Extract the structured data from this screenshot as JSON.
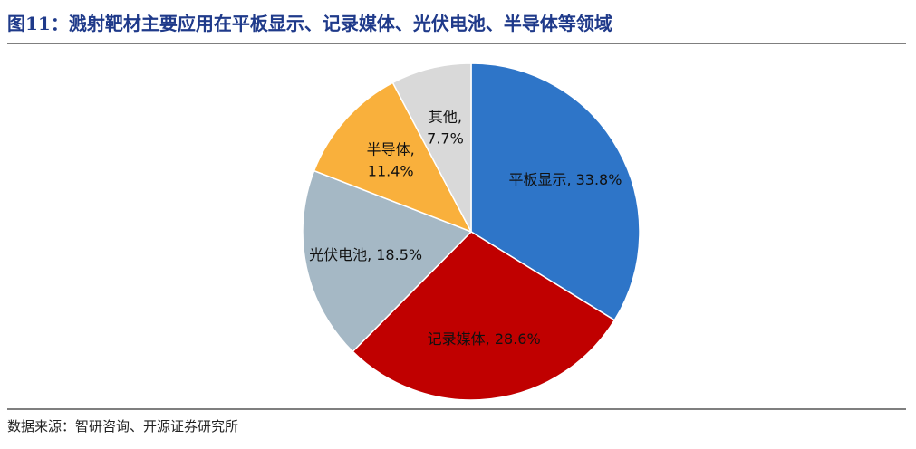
{
  "chart_data": {
    "type": "pie",
    "title": "图11：溅射靶材主要应用在平板显示、记录媒体、光伏电池、半导体等领域",
    "values": [
      33.8,
      28.6,
      18.5,
      11.4,
      7.7
    ],
    "value_labels": [
      "平板显示, 33.8%",
      "记录媒体, 28.6%",
      "光伏电池, 18.5%",
      "半导体,\n11.4%",
      "其他,\n7.7%"
    ],
    "colors": [
      "#2e75c8",
      "#c00000",
      "#a5b8c5",
      "#f9b03c",
      "#d9d9d9"
    ],
    "source": "数据来源：智研咨询、开源证券研究所"
  }
}
